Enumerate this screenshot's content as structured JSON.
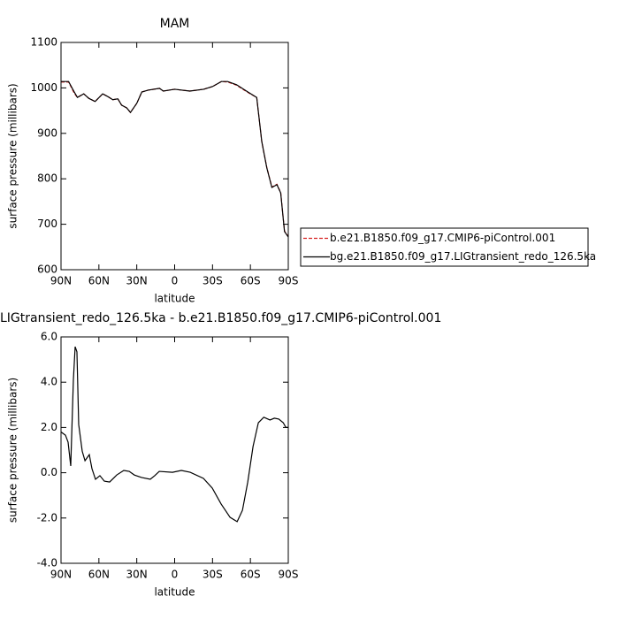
{
  "chart_data": [
    {
      "type": "line",
      "title": "MAM",
      "xlabel": "latitude",
      "ylabel": "surface pressure (millibars)",
      "x": [
        90,
        84,
        79.5,
        77,
        72,
        68,
        63,
        57,
        53,
        49,
        45,
        42,
        38,
        35,
        30,
        26,
        21,
        12,
        9,
        0,
        -12,
        -23,
        -30,
        -37,
        -42,
        -49,
        -58,
        -65,
        -69,
        -73,
        -77,
        -81,
        -84,
        -87,
        -90
      ],
      "xlim": [
        90,
        -90
      ],
      "xticks": [
        {
          "value": 90,
          "label": "90N"
        },
        {
          "value": 60,
          "label": "60N"
        },
        {
          "value": 30,
          "label": "30N"
        },
        0,
        {
          "value": -30,
          "label": "30S"
        },
        {
          "value": -60,
          "label": "60S"
        },
        {
          "value": -90,
          "label": "90S"
        }
      ],
      "ylim": [
        600,
        1100
      ],
      "yticks": [
        600,
        700,
        800,
        900,
        1000,
        1100
      ],
      "series": [
        {
          "name": "b.e21.B1850.f09_g17.CMIP6-piControl.001",
          "color": "#d62020",
          "dash": true,
          "values": [
            1013,
            1013,
            988,
            979,
            987,
            977,
            970,
            987,
            981,
            974,
            976,
            962,
            956,
            946,
            966,
            991,
            995,
            999,
            993,
            997,
            993,
            997,
            1003,
            1014,
            1013,
            1006,
            990,
            979,
            882,
            825,
            782,
            788,
            770,
            685,
            673
          ]
        },
        {
          "name": "bg.e21.B1850.f09_g17.LIGtransient_redo_126.5ka",
          "color": "#000000",
          "dash": false,
          "values": [
            1014,
            1014,
            991,
            979,
            987,
            977,
            970,
            987,
            981,
            974,
            976,
            962,
            956,
            946,
            966,
            991,
            995,
            999,
            993,
            997,
            993,
            997,
            1003,
            1014,
            1014,
            1007,
            991,
            979,
            882,
            824,
            781,
            787,
            769,
            684,
            672
          ]
        }
      ]
    },
    {
      "type": "line",
      "title": "LIGtransient_redo_126.5ka - b.e21.B1850.f09_g17.CMIP6-piControl.001",
      "xlabel": "latitude",
      "ylabel": "surface pressure (millibars)",
      "x": [
        90,
        86.5,
        84.4,
        82.3,
        80.2,
        78.8,
        77.4,
        76,
        73.2,
        71,
        67.6,
        65.5,
        62.7,
        59.2,
        55.7,
        51.5,
        45.9,
        40.3,
        36,
        31.9,
        26.3,
        19.3,
        15.8,
        12.2,
        1.7,
        -5.3,
        -12.3,
        -22.8,
        -29.8,
        -36.8,
        -43.9,
        -49.5,
        -53.7,
        -57.9,
        -62.1,
        -66.3,
        -70.6,
        -75.5,
        -79,
        -82.5,
        -86,
        -88.1,
        -90
      ],
      "xlim": [
        90,
        -90
      ],
      "xticks": [
        {
          "value": 90,
          "label": "90N"
        },
        {
          "value": 60,
          "label": "60N"
        },
        {
          "value": 30,
          "label": "30N"
        },
        0,
        {
          "value": -30,
          "label": "30S"
        },
        {
          "value": -60,
          "label": "60S"
        },
        {
          "value": -90,
          "label": "90S"
        }
      ],
      "ylim": [
        -4,
        6
      ],
      "yticks": [
        {
          "value": -4,
          "label": "-4.0"
        },
        {
          "value": -2,
          "label": "-2.0"
        },
        {
          "value": 0,
          "label": "0.0"
        },
        {
          "value": 2,
          "label": "2.0"
        },
        {
          "value": 4,
          "label": "4.0"
        },
        {
          "value": 6,
          "label": "6.0"
        }
      ],
      "series": [
        {
          "color": "#000000",
          "dash": false,
          "values": [
            1.8,
            1.66,
            1.35,
            0.3,
            4.1,
            5.57,
            5.34,
            2.13,
            0.95,
            0.53,
            0.8,
            0.18,
            -0.29,
            -0.13,
            -0.37,
            -0.41,
            -0.1,
            0.1,
            0.06,
            -0.1,
            -0.21,
            -0.29,
            -0.13,
            0.06,
            0.02,
            0.1,
            0.02,
            -0.25,
            -0.68,
            -1.38,
            -1.97,
            -2.16,
            -1.66,
            -0.41,
            1.16,
            2.21,
            2.45,
            2.33,
            2.41,
            2.37,
            2.21,
            2.0,
            2.0
          ]
        }
      ]
    }
  ]
}
